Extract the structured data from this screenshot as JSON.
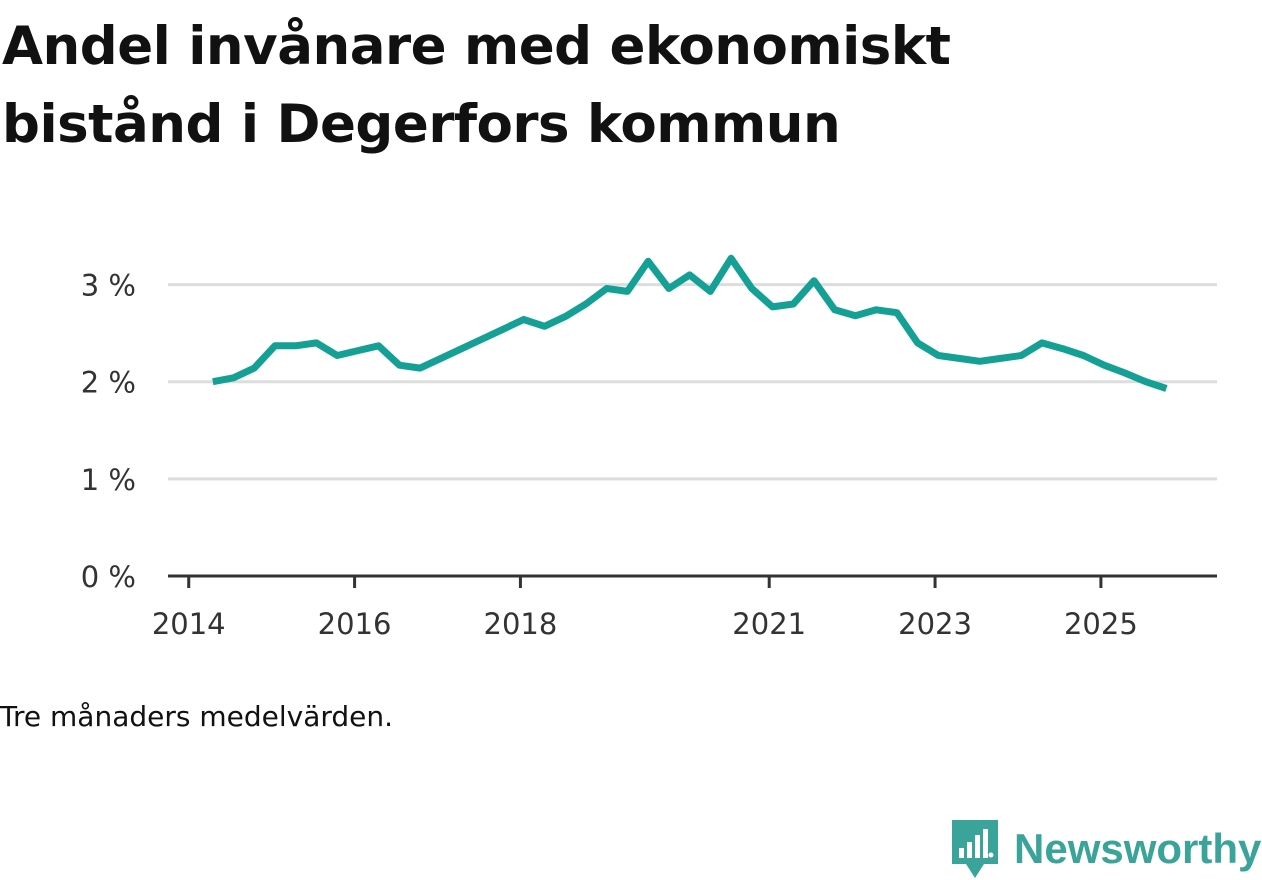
{
  "title": "Andel invånare med ekonomiskt bistånd i Degerfors kommun",
  "note": "Tre månaders medelvärden.",
  "brand": {
    "name": "Newsworthy",
    "logo_icon": "newsworthy-logo-icon",
    "color": "#3aa39a"
  },
  "colors": {
    "line": "#14a095",
    "grid": "#dddddd",
    "axis": "#333333"
  },
  "chart_data": {
    "type": "line",
    "title": "Andel invånare med ekonomiskt bistånd i Degerfors kommun",
    "xlabel": "",
    "ylabel": "",
    "ylim": [
      0,
      3.5
    ],
    "y_ticks": [
      {
        "value": 0,
        "label": "0 %"
      },
      {
        "value": 1,
        "label": "1 %"
      },
      {
        "value": 2,
        "label": "2 %"
      },
      {
        "value": 3,
        "label": "3 %"
      }
    ],
    "x_ticks": [
      {
        "value": 2014.0,
        "label": "2014"
      },
      {
        "value": 2016.0,
        "label": "2016"
      },
      {
        "value": 2018.0,
        "label": "2018"
      },
      {
        "value": 2021.0,
        "label": "2021"
      },
      {
        "value": 2023.0,
        "label": "2023"
      },
      {
        "value": 2025.0,
        "label": "2025"
      }
    ],
    "xlim": [
      2013.75,
      2026.4
    ],
    "grid": true,
    "series": [
      {
        "name": "Andel invånare med ekonomiskt bistånd",
        "x": [
          2014.29,
          2014.54,
          2014.79,
          2015.04,
          2015.29,
          2015.54,
          2015.79,
          2016.04,
          2016.29,
          2016.54,
          2016.79,
          2017.04,
          2017.29,
          2017.54,
          2017.79,
          2018.04,
          2018.29,
          2018.54,
          2018.79,
          2019.04,
          2019.29,
          2019.54,
          2019.79,
          2020.04,
          2020.29,
          2020.54,
          2020.79,
          2021.04,
          2021.29,
          2021.54,
          2021.79,
          2022.04,
          2022.29,
          2022.54,
          2022.79,
          2023.04,
          2023.29,
          2023.54,
          2023.79,
          2024.04,
          2024.29,
          2024.54,
          2024.79,
          2025.04,
          2025.29,
          2025.54,
          2025.79
        ],
        "values": [
          2.0,
          2.04,
          2.14,
          2.37,
          2.37,
          2.4,
          2.27,
          2.32,
          2.37,
          2.17,
          2.14,
          2.24,
          2.34,
          2.44,
          2.54,
          2.64,
          2.57,
          2.67,
          2.8,
          2.96,
          2.93,
          3.24,
          2.96,
          3.1,
          2.93,
          3.27,
          2.96,
          2.77,
          2.8,
          3.04,
          2.74,
          2.68,
          2.74,
          2.71,
          2.4,
          2.27,
          2.24,
          2.21,
          2.24,
          2.27,
          2.4,
          2.34,
          2.27,
          2.17,
          2.09,
          2.0,
          1.93
        ]
      }
    ]
  }
}
